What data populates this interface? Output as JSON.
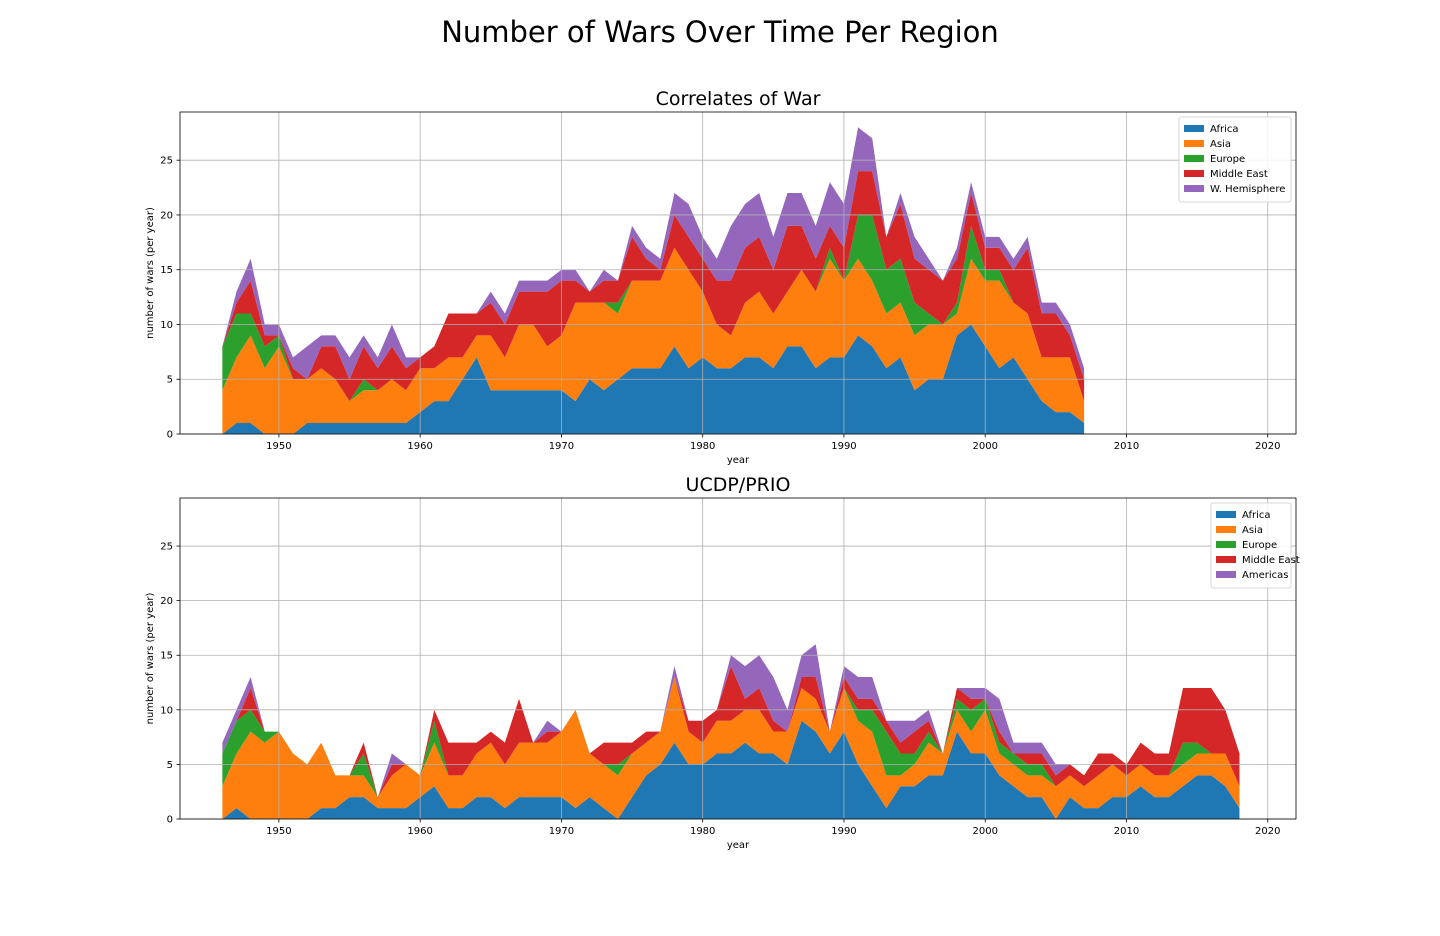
{
  "figure": {
    "title": "Number of Wars Over Time Per Region"
  },
  "colors": {
    "Africa": "#1f77b4",
    "Asia": "#ff7f0e",
    "Europe": "#2ca02c",
    "Middle East": "#d62728",
    "W. Hemisphere": "#9467bd",
    "Americas": "#9467bd"
  },
  "chart_data": [
    {
      "type": "area",
      "stacked": true,
      "title": "Correlates of War",
      "xlabel": "year",
      "ylabel": "number of wars (per year)",
      "xlim": [
        1943,
        2022
      ],
      "ylim": [
        0,
        29.4
      ],
      "xticks": [
        1950,
        1960,
        1970,
        1980,
        1990,
        2000,
        2010,
        2020
      ],
      "yticks": [
        0,
        5,
        10,
        15,
        20,
        25
      ],
      "grid": true,
      "legend": "top-right",
      "x": [
        1946,
        1947,
        1948,
        1949,
        1950,
        1951,
        1952,
        1953,
        1954,
        1955,
        1956,
        1957,
        1958,
        1959,
        1960,
        1961,
        1962,
        1963,
        1964,
        1965,
        1966,
        1967,
        1968,
        1969,
        1970,
        1971,
        1972,
        1973,
        1974,
        1975,
        1976,
        1977,
        1978,
        1979,
        1980,
        1981,
        1982,
        1983,
        1984,
        1985,
        1986,
        1987,
        1988,
        1989,
        1990,
        1991,
        1992,
        1993,
        1994,
        1995,
        1996,
        1997,
        1998,
        1999,
        2000,
        2001,
        2002,
        2003,
        2004,
        2005,
        2006,
        2007
      ],
      "series": [
        {
          "name": "Africa",
          "values": [
            0,
            1,
            1,
            0,
            0,
            0,
            1,
            1,
            1,
            1,
            1,
            1,
            1,
            1,
            2,
            3,
            3,
            5,
            7,
            4,
            4,
            4,
            4,
            4,
            4,
            3,
            5,
            4,
            5,
            6,
            6,
            6,
            8,
            6,
            7,
            6,
            6,
            7,
            7,
            6,
            8,
            8,
            6,
            7,
            7,
            9,
            8,
            6,
            7,
            4,
            5,
            5,
            9,
            10,
            8,
            6,
            7,
            5,
            3,
            2,
            2,
            1
          ]
        },
        {
          "name": "Asia",
          "values": [
            4,
            6,
            8,
            6,
            8,
            5,
            4,
            5,
            4,
            2,
            3,
            3,
            4,
            3,
            4,
            3,
            4,
            2,
            2,
            5,
            3,
            6,
            6,
            4,
            5,
            9,
            7,
            8,
            6,
            8,
            8,
            8,
            9,
            9,
            6,
            4,
            3,
            5,
            6,
            5,
            5,
            7,
            7,
            9,
            7,
            7,
            6,
            5,
            5,
            5,
            5,
            5,
            2,
            6,
            6,
            8,
            5,
            6,
            4,
            5,
            5,
            2
          ]
        },
        {
          "name": "Europe",
          "values": [
            4,
            4,
            2,
            2,
            1,
            0,
            0,
            0,
            0,
            0,
            1,
            0,
            0,
            0,
            0,
            0,
            0,
            0,
            0,
            0,
            0,
            0,
            0,
            0,
            0,
            0,
            0,
            0,
            1,
            0,
            0,
            0,
            0,
            0,
            0,
            0,
            0,
            0,
            0,
            0,
            0,
            0,
            0,
            1,
            0,
            4,
            6,
            4,
            4,
            3,
            1,
            0,
            1,
            3,
            1,
            1,
            0,
            0,
            0,
            0,
            0,
            0
          ]
        },
        {
          "name": "Middle East",
          "values": [
            0,
            1,
            3,
            1,
            0,
            1,
            0,
            2,
            3,
            2,
            3,
            2,
            3,
            2,
            1,
            2,
            4,
            4,
            2,
            3,
            3,
            3,
            3,
            5,
            5,
            2,
            1,
            2,
            2,
            4,
            2,
            1,
            3,
            3,
            3,
            4,
            5,
            5,
            5,
            4,
            6,
            4,
            3,
            2,
            3,
            4,
            4,
            3,
            5,
            4,
            4,
            4,
            4,
            3,
            2,
            2,
            3,
            6,
            4,
            4,
            2,
            2
          ]
        },
        {
          "name": "W. Hemisphere",
          "values": [
            0,
            1,
            2,
            1,
            1,
            1,
            3,
            1,
            1,
            2,
            1,
            1,
            2,
            1,
            0,
            0,
            0,
            0,
            0,
            1,
            1,
            1,
            1,
            1,
            1,
            1,
            0,
            1,
            0,
            1,
            1,
            1,
            2,
            3,
            2,
            2,
            5,
            4,
            4,
            3,
            3,
            3,
            3,
            4,
            4,
            4,
            3,
            0,
            1,
            2,
            1,
            0,
            1,
            1,
            1,
            1,
            1,
            1,
            1,
            1,
            1,
            1
          ]
        }
      ]
    },
    {
      "type": "area",
      "stacked": true,
      "title": "UCDP/PRIO",
      "xlabel": "year",
      "ylabel": "number of wars (per year)",
      "xlim": [
        1943,
        2022
      ],
      "ylim": [
        0,
        29.4
      ],
      "xticks": [
        1950,
        1960,
        1970,
        1980,
        1990,
        2000,
        2010,
        2020
      ],
      "yticks": [
        0,
        5,
        10,
        15,
        20,
        25
      ],
      "grid": true,
      "legend": "top-right",
      "x": [
        1946,
        1947,
        1948,
        1949,
        1950,
        1951,
        1952,
        1953,
        1954,
        1955,
        1956,
        1957,
        1958,
        1959,
        1960,
        1961,
        1962,
        1963,
        1964,
        1965,
        1966,
        1967,
        1968,
        1969,
        1970,
        1971,
        1972,
        1973,
        1974,
        1975,
        1976,
        1977,
        1978,
        1979,
        1980,
        1981,
        1982,
        1983,
        1984,
        1985,
        1986,
        1987,
        1988,
        1989,
        1990,
        1991,
        1992,
        1993,
        1994,
        1995,
        1996,
        1997,
        1998,
        1999,
        2000,
        2001,
        2002,
        2003,
        2004,
        2005,
        2006,
        2007,
        2008,
        2009,
        2010,
        2011,
        2012,
        2013,
        2014,
        2015,
        2016,
        2017,
        2018
      ],
      "series": [
        {
          "name": "Africa",
          "values": [
            0,
            1,
            0,
            0,
            0,
            0,
            0,
            1,
            1,
            2,
            2,
            1,
            1,
            1,
            2,
            3,
            1,
            1,
            2,
            2,
            1,
            2,
            2,
            2,
            2,
            1,
            2,
            1,
            0,
            2,
            4,
            5,
            7,
            5,
            5,
            6,
            6,
            7,
            6,
            6,
            5,
            9,
            8,
            6,
            8,
            5,
            3,
            1,
            3,
            3,
            4,
            4,
            8,
            6,
            6,
            4,
            3,
            2,
            2,
            0,
            2,
            1,
            1,
            2,
            2,
            3,
            2,
            2,
            3,
            4,
            4,
            3,
            1
          ]
        },
        {
          "name": "Asia",
          "values": [
            3,
            5,
            8,
            7,
            8,
            6,
            5,
            6,
            3,
            2,
            2,
            1,
            3,
            4,
            2,
            4,
            3,
            3,
            4,
            5,
            4,
            5,
            5,
            5,
            6,
            9,
            4,
            4,
            4,
            4,
            3,
            3,
            6,
            3,
            2,
            3,
            3,
            3,
            4,
            2,
            3,
            3,
            3,
            2,
            4,
            4,
            5,
            3,
            1,
            2,
            3,
            2,
            2,
            2,
            4,
            2,
            2,
            2,
            2,
            3,
            2,
            2,
            3,
            3,
            2,
            2,
            2,
            2,
            2,
            2,
            2,
            3,
            2
          ]
        },
        {
          "name": "Europe",
          "values": [
            3,
            3,
            2,
            1,
            0,
            0,
            0,
            0,
            0,
            0,
            2,
            0,
            0,
            0,
            0,
            2,
            0,
            0,
            0,
            0,
            0,
            0,
            0,
            0,
            0,
            0,
            0,
            0,
            1,
            0,
            0,
            0,
            0,
            0,
            0,
            0,
            0,
            0,
            0,
            0,
            0,
            0,
            0,
            0,
            0,
            1,
            2,
            4,
            2,
            1,
            1,
            0,
            1,
            2,
            1,
            1,
            1,
            1,
            1,
            0,
            0,
            0,
            0,
            0,
            0,
            0,
            0,
            0,
            2,
            1,
            0,
            0,
            0
          ]
        },
        {
          "name": "Middle East",
          "values": [
            0,
            0,
            2,
            0,
            0,
            0,
            0,
            0,
            0,
            0,
            1,
            0,
            1,
            0,
            0,
            1,
            3,
            3,
            1,
            1,
            2,
            4,
            0,
            1,
            0,
            0,
            0,
            2,
            2,
            1,
            1,
            0,
            0,
            1,
            2,
            1,
            5,
            1,
            2,
            1,
            0,
            1,
            2,
            0,
            1,
            1,
            1,
            1,
            1,
            2,
            1,
            0,
            1,
            1,
            0,
            1,
            0,
            1,
            1,
            1,
            1,
            1,
            2,
            1,
            1,
            2,
            2,
            2,
            5,
            5,
            6,
            4,
            3
          ]
        },
        {
          "name": "Americas",
          "values": [
            1,
            1,
            1,
            0,
            0,
            0,
            0,
            0,
            0,
            0,
            0,
            0,
            1,
            0,
            0,
            0,
            0,
            0,
            0,
            0,
            0,
            0,
            0,
            1,
            0,
            0,
            0,
            0,
            0,
            0,
            0,
            0,
            1,
            0,
            0,
            0,
            1,
            3,
            3,
            4,
            2,
            2,
            3,
            0,
            1,
            2,
            2,
            0,
            2,
            1,
            1,
            0,
            0,
            1,
            1,
            3,
            1,
            1,
            1,
            1,
            0,
            0,
            0,
            0,
            0,
            0,
            0,
            0,
            0,
            0,
            0,
            0,
            0
          ]
        }
      ]
    }
  ]
}
